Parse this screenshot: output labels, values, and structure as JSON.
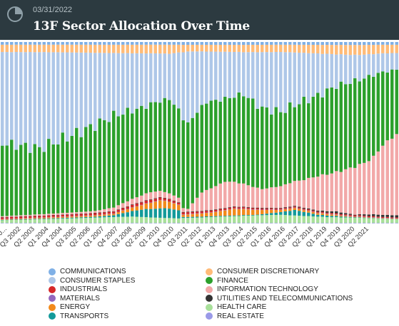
{
  "header": {
    "date": "03/31/2022",
    "title": "13F Sector Allocation Over Time",
    "icon": "pie-chart-icon"
  },
  "chart_data": {
    "type": "bar",
    "stacked": true,
    "normalized": true,
    "ylim": [
      0,
      100
    ],
    "grid": false,
    "legend_position": "bottom",
    "tick_labels": [
      "Q4 20...",
      "Q3 2002",
      "Q2 2003",
      "Q1 2004",
      "Q4 2004",
      "Q3 2005",
      "Q2 2006",
      "Q1 2007",
      "Q4 2007",
      "Q3 2008",
      "Q2 2009",
      "Q1 2010",
      "Q4 2010",
      "Q3 2011",
      "Q2 2012",
      "Q1 2013",
      "Q4 2013",
      "Q3 2014",
      "Q2 2015",
      "Q1 2016",
      "Q4 2016",
      "Q3 2017",
      "Q2 2018",
      "Q1 2019",
      "Q4 2019",
      "Q3 2020",
      "Q2 2021"
    ],
    "categories": [
      "Q4 2000",
      "Q1 2001",
      "Q2 2001",
      "Q3 2001",
      "Q4 2001",
      "Q1 2002",
      "Q2 2002",
      "Q3 2002",
      "Q4 2002",
      "Q1 2003",
      "Q2 2003",
      "Q3 2003",
      "Q4 2003",
      "Q1 2004",
      "Q2 2004",
      "Q3 2004",
      "Q4 2004",
      "Q1 2005",
      "Q2 2005",
      "Q3 2005",
      "Q4 2005",
      "Q1 2006",
      "Q2 2006",
      "Q3 2006",
      "Q4 2006",
      "Q1 2007",
      "Q2 2007",
      "Q3 2007",
      "Q4 2007",
      "Q1 2008",
      "Q2 2008",
      "Q3 2008",
      "Q4 2008",
      "Q1 2009",
      "Q2 2009",
      "Q3 2009",
      "Q4 2009",
      "Q1 2010",
      "Q2 2010",
      "Q3 2010",
      "Q4 2010",
      "Q1 2011",
      "Q2 2011",
      "Q3 2011",
      "Q4 2011",
      "Q1 2012",
      "Q2 2012",
      "Q3 2012",
      "Q4 2012",
      "Q1 2013",
      "Q2 2013",
      "Q3 2013",
      "Q4 2013",
      "Q1 2014",
      "Q2 2014",
      "Q3 2014",
      "Q4 2014",
      "Q1 2015",
      "Q2 2015",
      "Q3 2015",
      "Q4 2015",
      "Q1 2016",
      "Q2 2016",
      "Q3 2016",
      "Q4 2016",
      "Q1 2017",
      "Q2 2017",
      "Q3 2017",
      "Q4 2017",
      "Q1 2018",
      "Q2 2018",
      "Q3 2018",
      "Q4 2018",
      "Q1 2019",
      "Q2 2019",
      "Q3 2019",
      "Q4 2019",
      "Q1 2020",
      "Q2 2020",
      "Q3 2020",
      "Q4 2020",
      "Q1 2021",
      "Q2 2021",
      "Q3 2021",
      "Q4 2021",
      "Q1 2022"
    ],
    "series": [
      {
        "name": "REAL ESTATE",
        "color": "#9a9ae8",
        "keyframes": [
          [
            0,
            0.3
          ],
          [
            85,
            0.3
          ]
        ]
      },
      {
        "name": "HEALTH CARE",
        "color": "#a8e09a",
        "keyframes": [
          [
            0,
            1.5
          ],
          [
            28,
            3.5
          ],
          [
            38,
            2.5
          ],
          [
            60,
            4.5
          ],
          [
            70,
            3.0
          ],
          [
            85,
            2.0
          ]
        ]
      },
      {
        "name": "TRANSPORTS",
        "color": "#139a9a",
        "keyframes": [
          [
            0,
            0.2
          ],
          [
            20,
            0.5
          ],
          [
            24,
            1.0
          ],
          [
            28,
            3.0
          ],
          [
            31,
            4.5
          ],
          [
            35,
            5.5
          ],
          [
            38,
            4.5
          ],
          [
            39,
            0.5
          ],
          [
            55,
            0.3
          ],
          [
            60,
            1.5
          ],
          [
            63,
            3.0
          ],
          [
            68,
            1.0
          ],
          [
            75,
            0.3
          ],
          [
            85,
            0.1
          ]
        ]
      },
      {
        "name": "ENERGY",
        "color": "#f28a1b",
        "keyframes": [
          [
            0,
            0.3
          ],
          [
            24,
            0.8
          ],
          [
            30,
            2.5
          ],
          [
            34,
            4.5
          ],
          [
            38,
            3.0
          ],
          [
            39,
            1.2
          ],
          [
            45,
            2.0
          ],
          [
            50,
            3.5
          ],
          [
            55,
            2.5
          ],
          [
            60,
            1.2
          ],
          [
            65,
            1.0
          ],
          [
            70,
            0.8
          ],
          [
            75,
            0.3
          ],
          [
            85,
            0.2
          ]
        ]
      },
      {
        "name": "MATERIALS",
        "color": "#9467bd",
        "keyframes": [
          [
            0,
            0.2
          ],
          [
            85,
            0.2
          ]
        ]
      },
      {
        "name": "INDUSTRIALS",
        "color": "#d62728",
        "keyframes": [
          [
            0,
            0.8
          ],
          [
            24,
            1.0
          ],
          [
            32,
            1.5
          ],
          [
            38,
            1.0
          ],
          [
            60,
            0.6
          ],
          [
            85,
            0.5
          ]
        ]
      },
      {
        "name": "UTILITIES AND TELECOMMUNICATIONS",
        "color": "#333333",
        "keyframes": [
          [
            0,
            0.2
          ],
          [
            60,
            0.3
          ],
          [
            68,
            0.5
          ],
          [
            72,
            1.0
          ],
          [
            76,
            0.3
          ],
          [
            80,
            1.0
          ],
          [
            85,
            1.2
          ]
        ]
      },
      {
        "name": "INFORMATION TECHNOLOGY",
        "color": "#f2a8a8",
        "keyframes": [
          [
            0,
            0.5
          ],
          [
            20,
            1.0
          ],
          [
            24,
            2.0
          ],
          [
            28,
            3.0
          ],
          [
            32,
            4.0
          ],
          [
            38,
            2.5
          ],
          [
            40,
            1.5
          ],
          [
            43,
            10.0
          ],
          [
            48,
            14.0
          ],
          [
            52,
            12.0
          ],
          [
            56,
            10.0
          ],
          [
            60,
            12.0
          ],
          [
            64,
            14.0
          ],
          [
            68,
            18.0
          ],
          [
            72,
            20.0
          ],
          [
            76,
            24.0
          ],
          [
            78,
            26.0
          ],
          [
            80,
            30.0
          ],
          [
            82,
            38.0
          ],
          [
            85,
            44.0
          ]
        ]
      },
      {
        "name": "FINANCE",
        "color": "#2ca02c",
        "keyframes": [
          [
            0,
            40.0
          ],
          [
            8,
            37.0
          ],
          [
            16,
            44.0
          ],
          [
            24,
            50.0
          ],
          [
            30,
            48.0
          ],
          [
            36,
            52.0
          ],
          [
            40,
            45.0
          ],
          [
            44,
            47.0
          ],
          [
            48,
            44.0
          ],
          [
            52,
            47.0
          ],
          [
            56,
            43.0
          ],
          [
            60,
            41.0
          ],
          [
            64,
            42.0
          ],
          [
            68,
            42.0
          ],
          [
            72,
            44.0
          ],
          [
            76,
            43.0
          ],
          [
            80,
            43.0
          ],
          [
            85,
            35.0
          ]
        ]
      },
      {
        "name": "CONSUMER STAPLES",
        "color": "#aec7e8",
        "keyframes": [
          [
            0,
            50.0
          ],
          [
            8,
            54.0
          ],
          [
            16,
            45.0
          ],
          [
            24,
            34.0
          ],
          [
            30,
            30.0
          ],
          [
            36,
            25.0
          ],
          [
            40,
            38.0
          ],
          [
            44,
            27.0
          ],
          [
            48,
            25.0
          ],
          [
            52,
            22.0
          ],
          [
            56,
            30.0
          ],
          [
            60,
            33.0
          ],
          [
            64,
            27.0
          ],
          [
            68,
            22.0
          ],
          [
            72,
            16.0
          ],
          [
            76,
            13.0
          ],
          [
            80,
            11.0
          ],
          [
            85,
            9.0
          ]
        ]
      },
      {
        "name": "CONSUMER DISCRETIONARY",
        "color": "#ffbb78",
        "keyframes": [
          [
            0,
            4.0
          ],
          [
            24,
            4.5
          ],
          [
            36,
            5.0
          ],
          [
            40,
            3.5
          ],
          [
            60,
            4.0
          ],
          [
            76,
            5.0
          ],
          [
            85,
            4.5
          ]
        ]
      },
      {
        "name": "COMMUNICATIONS",
        "color": "#7fb0e6",
        "keyframes": [
          [
            0,
            1.5
          ],
          [
            85,
            1.5
          ]
        ]
      }
    ]
  },
  "legend": {
    "left_column": [
      {
        "label": "COMMUNICATIONS",
        "color": "#7fb0e6"
      },
      {
        "label": "CONSUMER STAPLES",
        "color": "#aec7e8"
      },
      {
        "label": "INDUSTRIALS",
        "color": "#d62728"
      },
      {
        "label": "MATERIALS",
        "color": "#9467bd"
      },
      {
        "label": "ENERGY",
        "color": "#f28a1b"
      },
      {
        "label": "TRANSPORTS",
        "color": "#139a9a"
      }
    ],
    "right_column": [
      {
        "label": "CONSUMER DISCRETIONARY",
        "color": "#ffbb78"
      },
      {
        "label": "FINANCE",
        "color": "#2ca02c"
      },
      {
        "label": "INFORMATION TECHNOLOGY",
        "color": "#f2a8a8"
      },
      {
        "label": "UTILITIES AND TELECOMMUNICATIONS",
        "color": "#333333"
      },
      {
        "label": "HEALTH CARE",
        "color": "#a8e09a"
      },
      {
        "label": "REAL ESTATE",
        "color": "#9a9ae8"
      }
    ]
  }
}
